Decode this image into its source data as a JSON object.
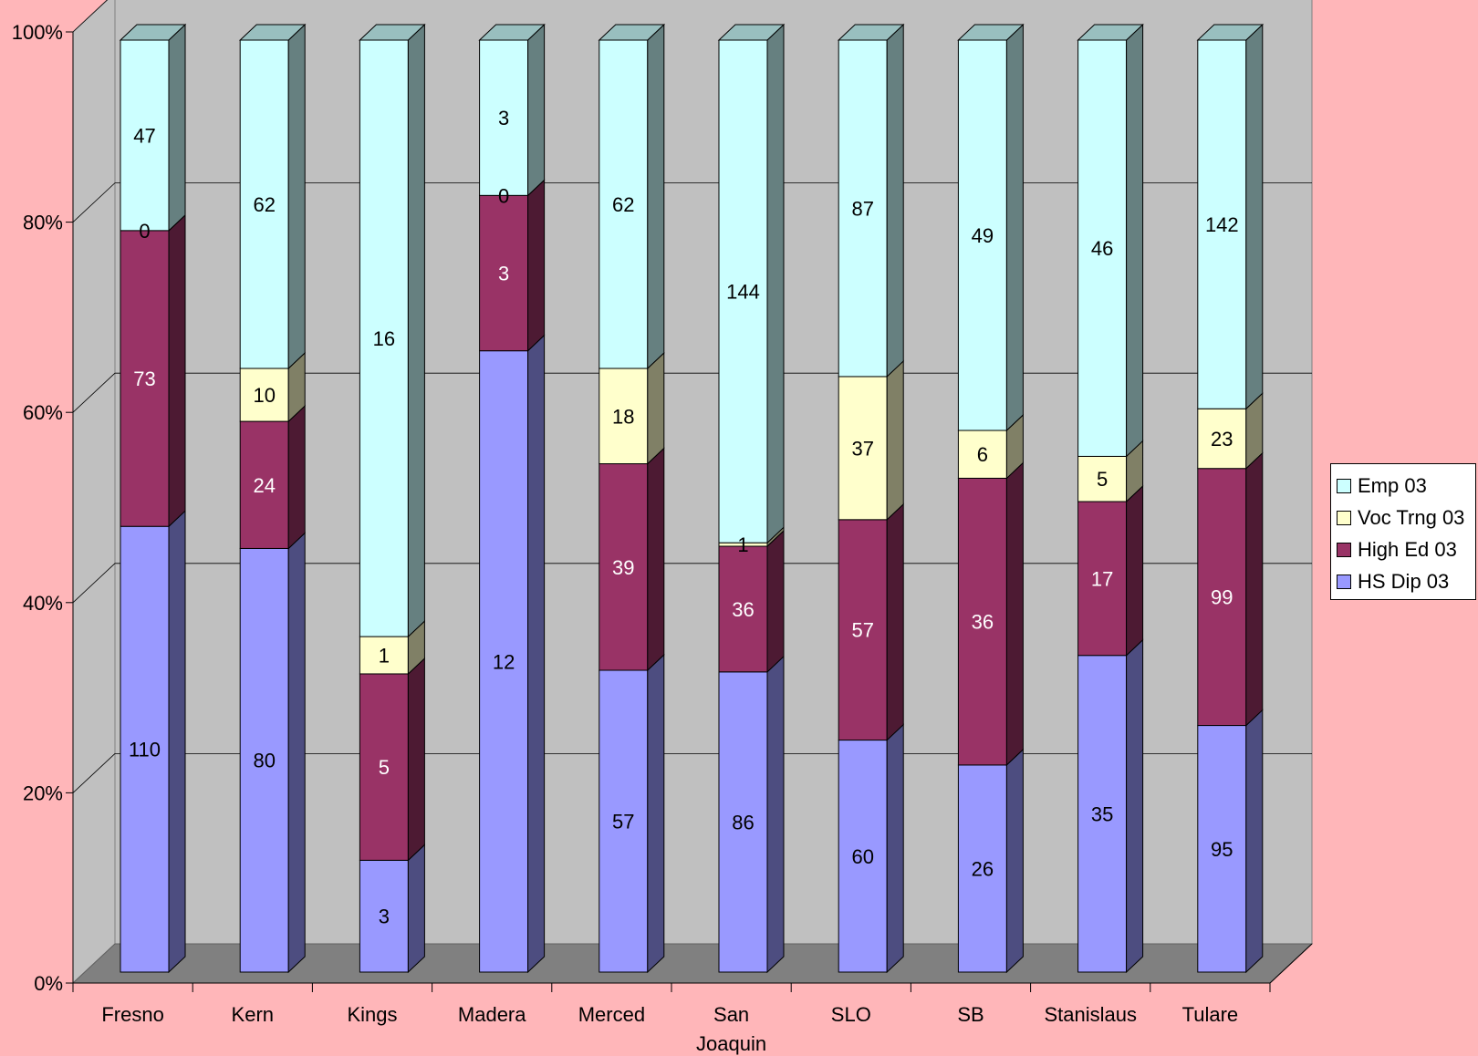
{
  "chart_data": {
    "type": "bar",
    "stacked": "percent",
    "three_d": true,
    "title": "",
    "xlabel": "",
    "ylabel": "",
    "ylim": [
      0,
      100
    ],
    "y_tick_labels": [
      "0%",
      "20%",
      "40%",
      "60%",
      "80%",
      "100%"
    ],
    "grid": true,
    "legend_position": "right",
    "categories": [
      "Fresno",
      "Kern",
      "Kings",
      "Madera",
      "Merced",
      "San Joaquin",
      "SLO",
      "SB",
      "Stanislaus",
      "Tulare"
    ],
    "category_label_lines": [
      [
        "Fresno"
      ],
      [
        "Kern"
      ],
      [
        "Kings"
      ],
      [
        "Madera"
      ],
      [
        "Merced"
      ],
      [
        "San",
        "Joaquin"
      ],
      [
        "SLO"
      ],
      [
        "SB"
      ],
      [
        "Stanislaus"
      ],
      [
        "Tulare"
      ]
    ],
    "series": [
      {
        "name": "HS Dip 03",
        "color": "#9999ff",
        "values": [
          110,
          80,
          3,
          12,
          57,
          86,
          60,
          26,
          35,
          95
        ]
      },
      {
        "name": "High Ed 03",
        "color": "#993366",
        "values": [
          73,
          24,
          5,
          3,
          39,
          36,
          57,
          36,
          17,
          99
        ]
      },
      {
        "name": "Voc Trng 03",
        "color": "#ffffcc",
        "values": [
          0,
          10,
          1,
          0,
          18,
          1,
          37,
          6,
          5,
          23
        ]
      },
      {
        "name": "Emp 03",
        "color": "#ccffff",
        "values": [
          47,
          62,
          16,
          3,
          62,
          144,
          87,
          49,
          46,
          142
        ]
      }
    ],
    "colors": {
      "page_background": "#ffb6b9",
      "plot_back_wall": "#c0c0c0",
      "plot_side_wall": "#c0c0c0",
      "plot_floor": "#808080"
    }
  }
}
